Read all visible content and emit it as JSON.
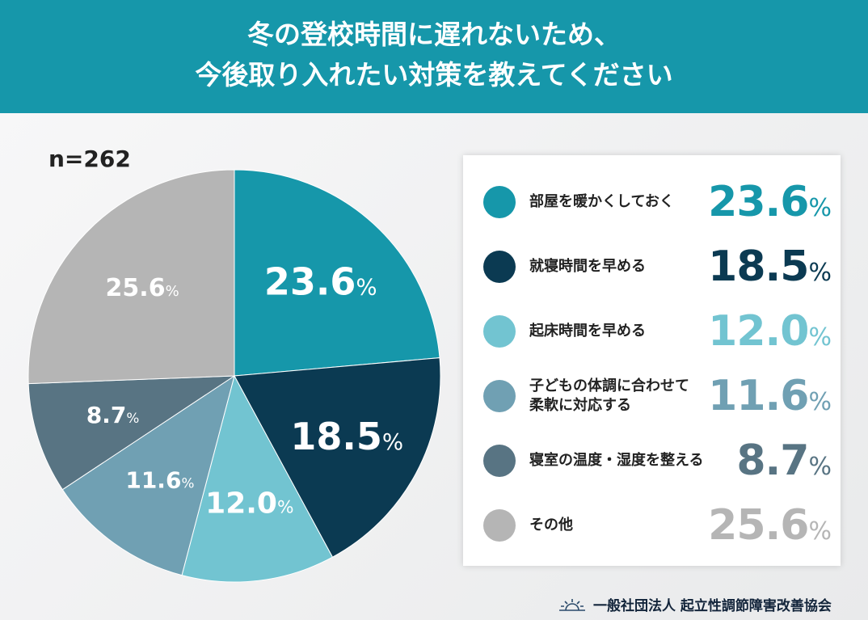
{
  "title_lines": [
    "冬の登校時間に遅れないため、",
    "今後取り入れたい対策を教えてください"
  ],
  "n_label": "n=262",
  "organization": "一般社団法人 起立性調節障害改善協会",
  "chart_data": {
    "type": "pie",
    "start": "top",
    "direction": "clockwise",
    "slices": [
      {
        "label": "部屋を暖かくしておく",
        "value": 23.6,
        "display": "23.6",
        "color": "#1697aa"
      },
      {
        "label": "就寝時間を早める",
        "value": 18.5,
        "display": "18.5",
        "color": "#0b3a52"
      },
      {
        "label": "起床時間を早める",
        "value": 12.0,
        "display": "12.0",
        "color": "#72c4d1"
      },
      {
        "label": "子どもの体調に合わせて\n柔軟に対応する",
        "value": 11.6,
        "display": "11.6",
        "color": "#70a0b3"
      },
      {
        "label": "寝室の温度・湿度を整える",
        "value": 8.7,
        "display": "8.7",
        "color": "#587483"
      },
      {
        "label": "その他",
        "value": 25.6,
        "display": "25.6",
        "color": "#b5b5b5"
      }
    ],
    "unit": "%"
  }
}
